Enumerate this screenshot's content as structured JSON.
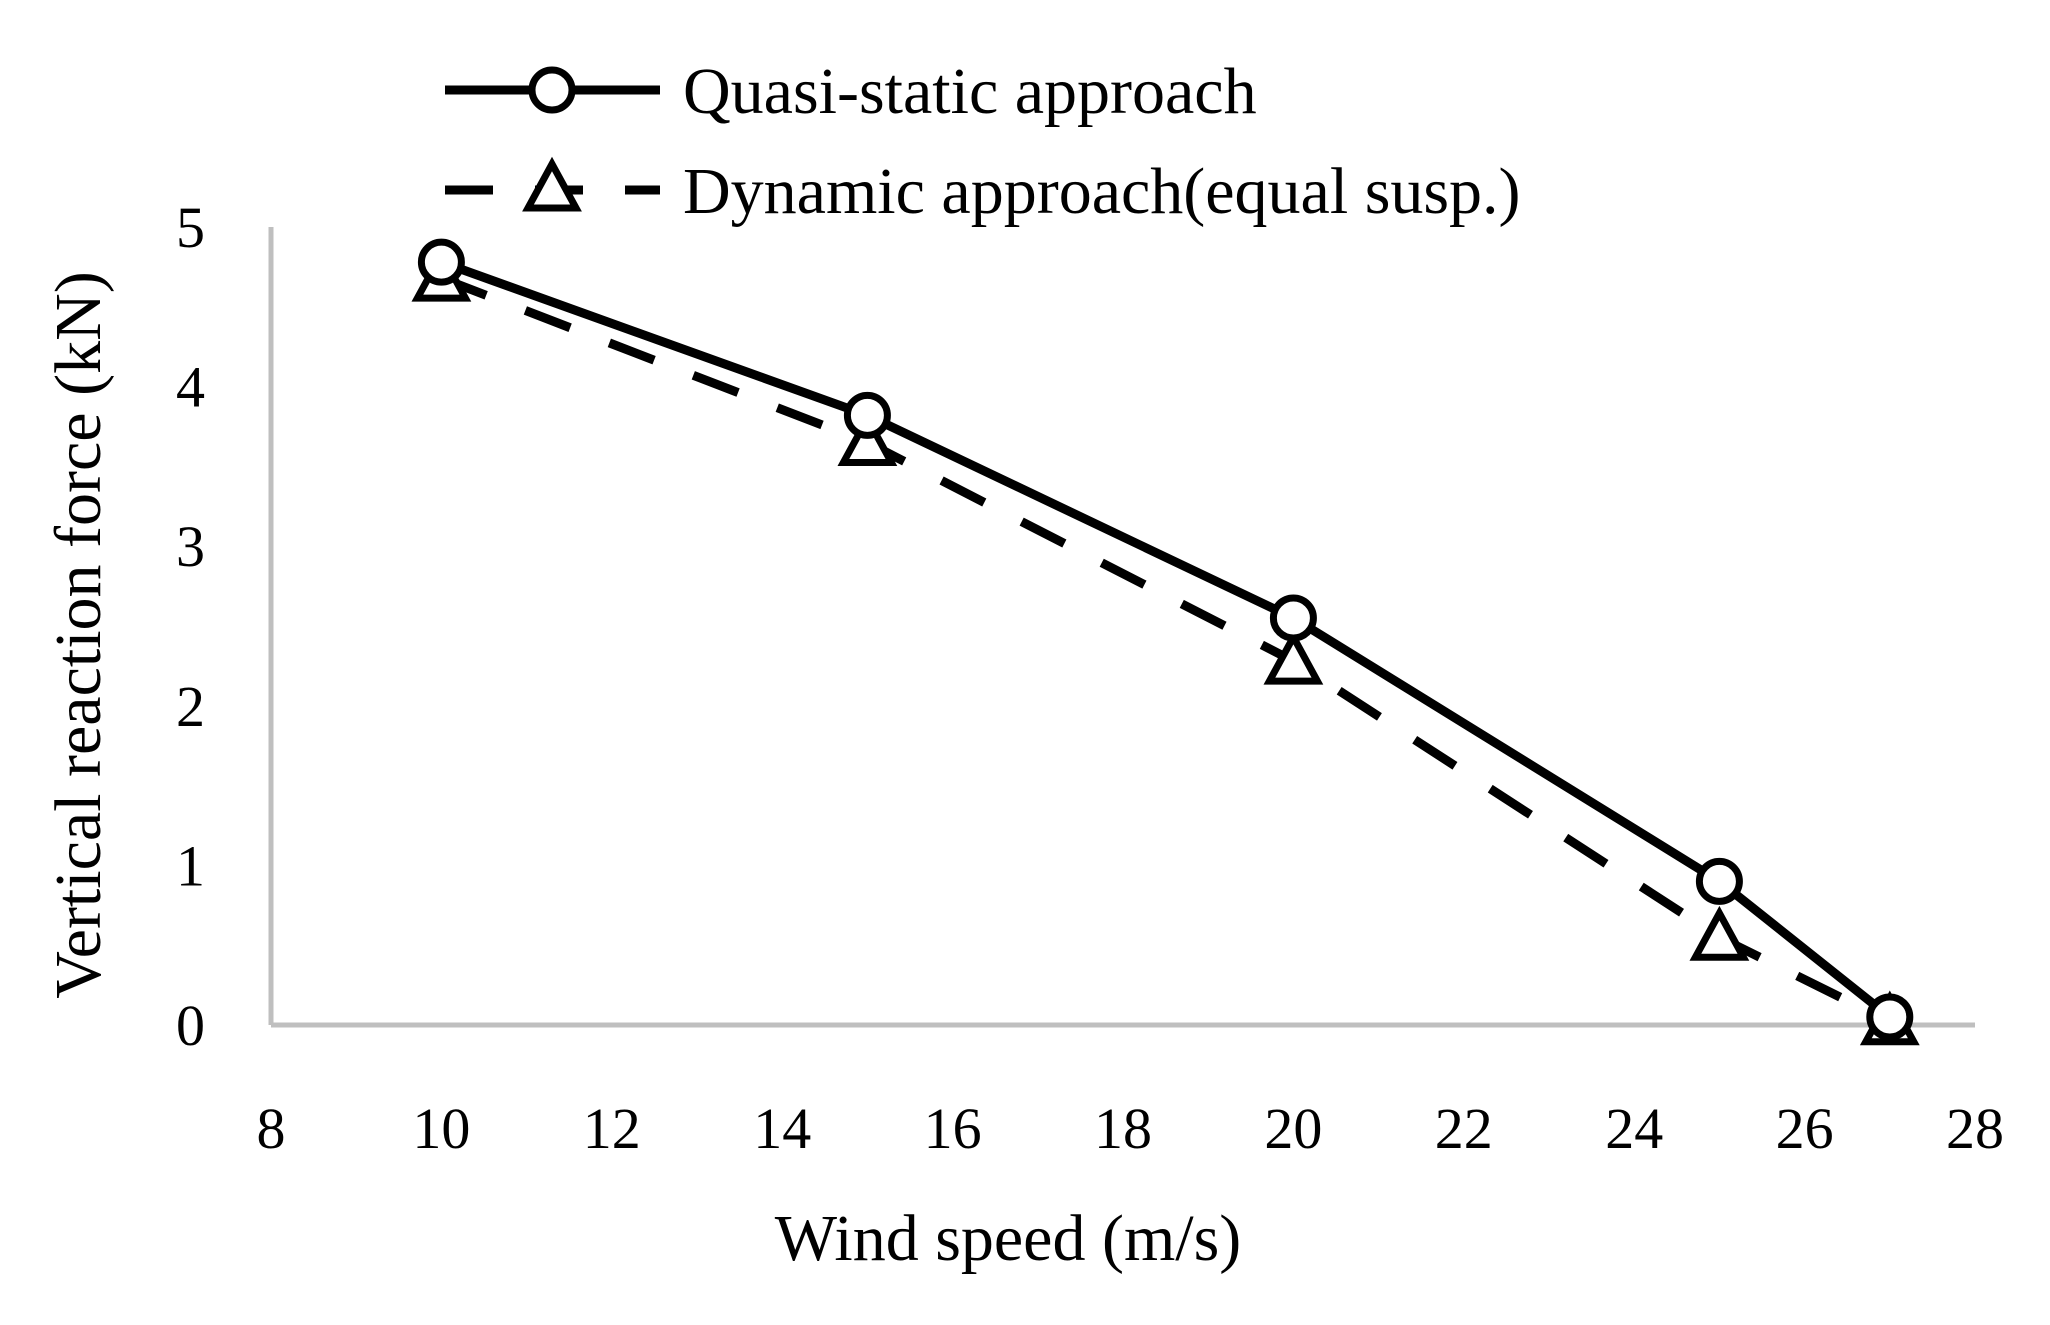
{
  "chart_data": {
    "type": "line",
    "title": "",
    "xlabel": "Wind speed (m/s)",
    "ylabel": "Vertical reaction force (kN)",
    "xlim": [
      8,
      28
    ],
    "ylim": [
      0,
      5
    ],
    "xticks": [
      8,
      10,
      12,
      14,
      16,
      18,
      20,
      22,
      24,
      26,
      28
    ],
    "yticks": [
      0,
      1,
      2,
      3,
      4,
      5
    ],
    "grid": false,
    "legend_position": "top",
    "series": [
      {
        "name": "Quasi-static approach",
        "style": "solid",
        "marker": "circle",
        "x": [
          10,
          15,
          20,
          25,
          27
        ],
        "y": [
          4.78,
          3.82,
          2.55,
          0.9,
          0.05
        ]
      },
      {
        "name": "Dynamic approach(equal susp.)",
        "style": "dashed",
        "marker": "triangle",
        "x": [
          10,
          15,
          20,
          25,
          27
        ],
        "y": [
          4.68,
          3.65,
          2.28,
          0.55,
          0.02
        ]
      }
    ],
    "colors": {
      "line": "#000000",
      "axis": "#bfbfbf",
      "marker_fill": "#ffffff"
    }
  }
}
